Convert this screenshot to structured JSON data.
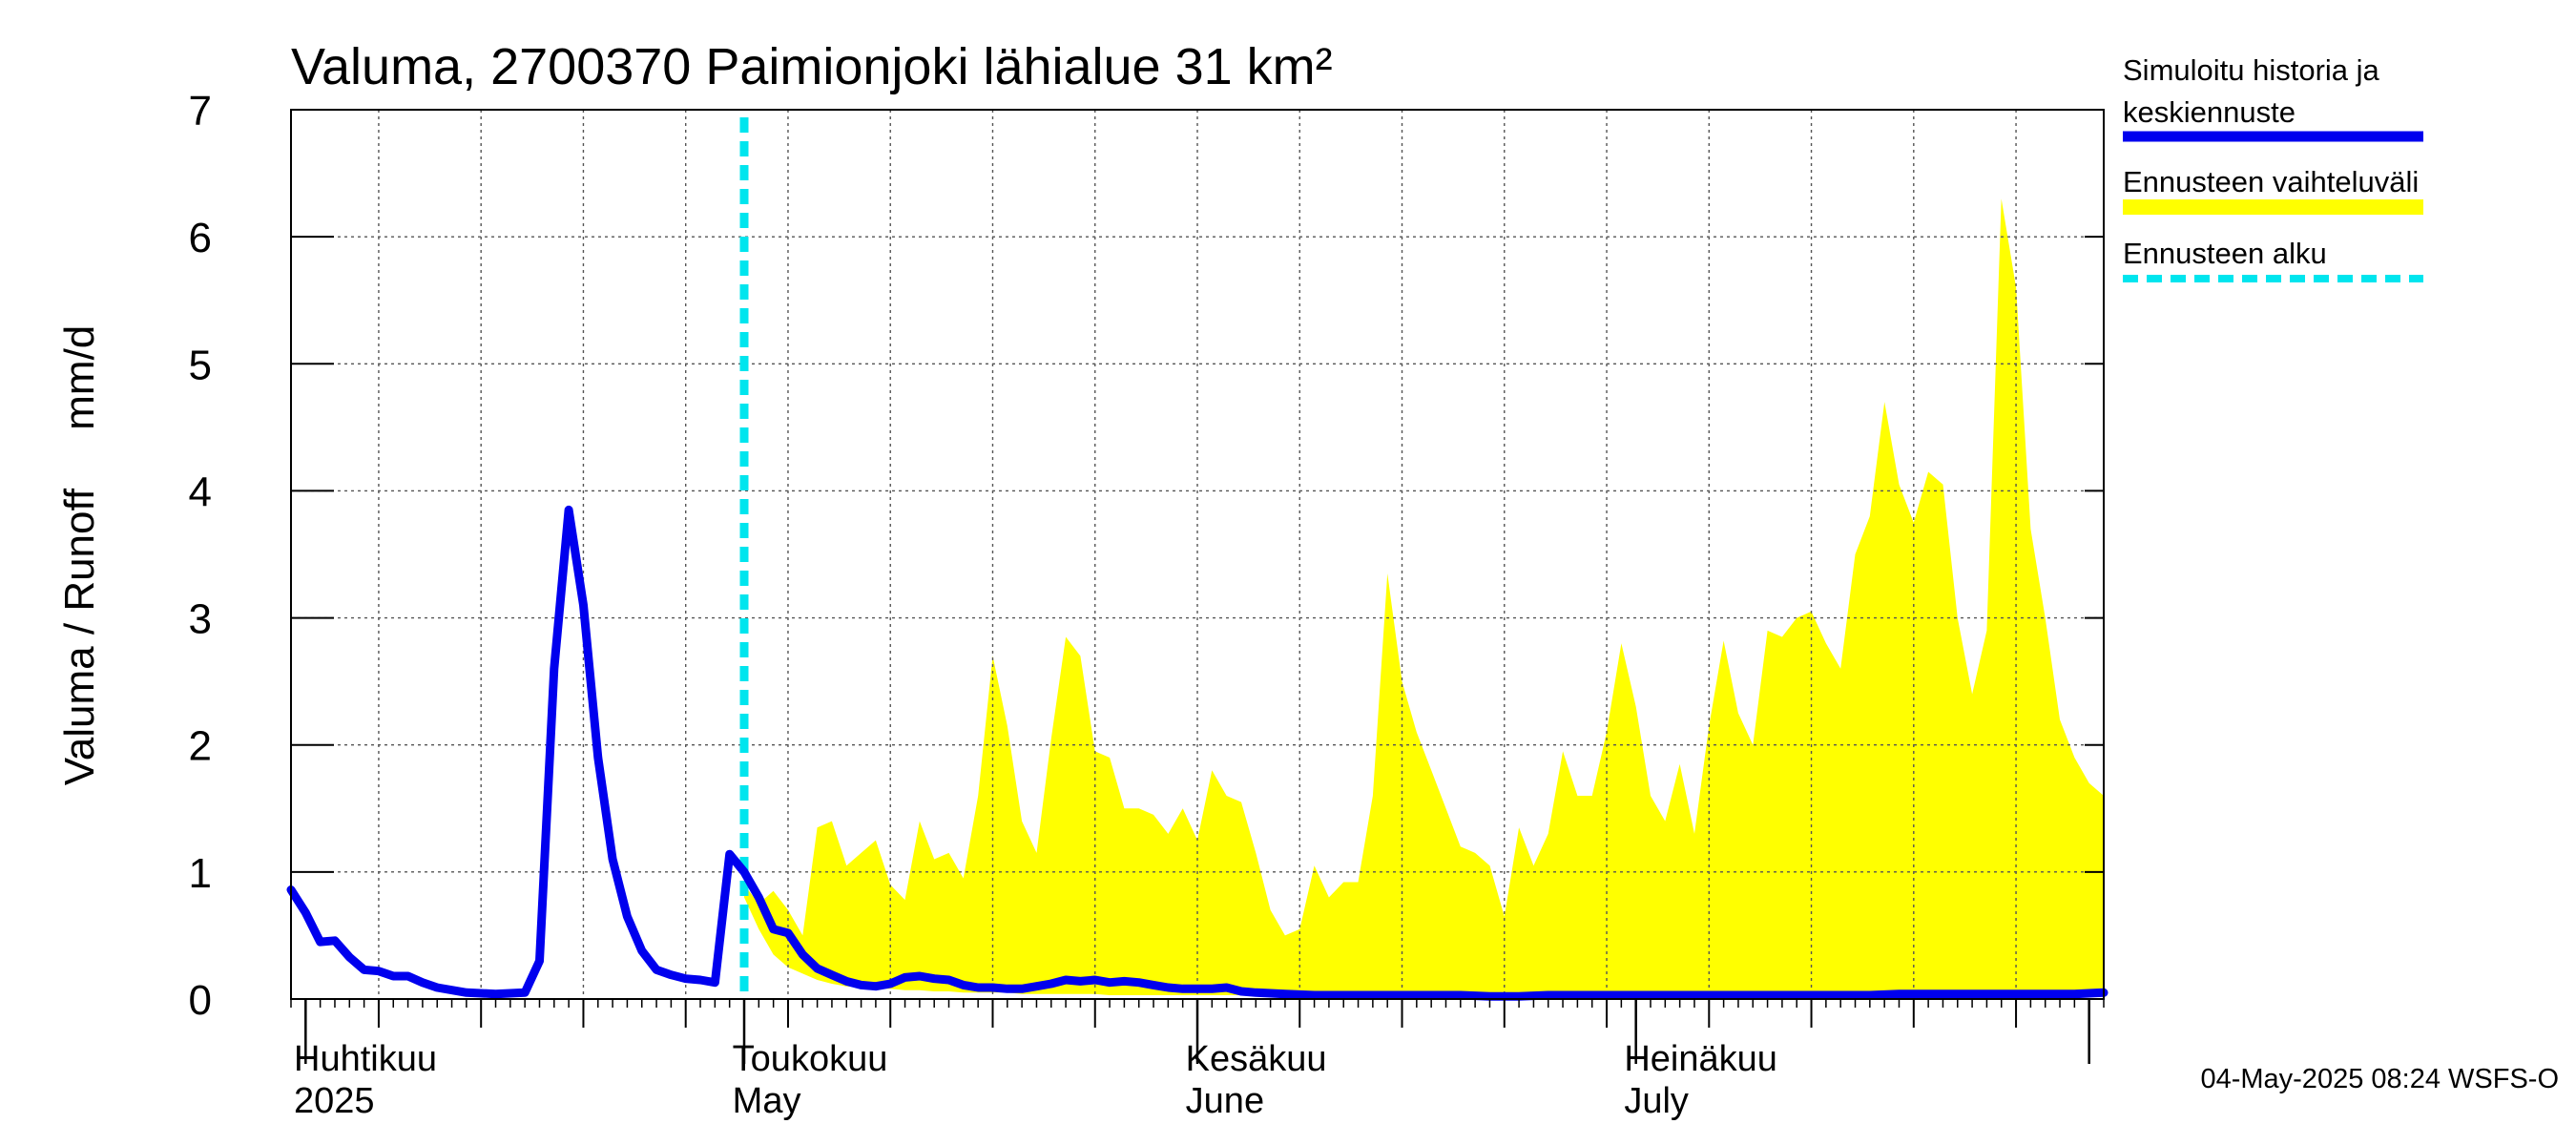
{
  "chart_data": {
    "type": "area",
    "title": "Valuma, 2700370 Paimionjoki lähialue 31 km²",
    "ylabel": "Valuma / Runoff     mm/d",
    "xlabel": "",
    "ylim": [
      0,
      7
    ],
    "yticks": [
      0,
      1,
      2,
      3,
      4,
      5,
      6,
      7
    ],
    "grid": true,
    "x_unit": "day index from 2025-03-31",
    "xlim": [
      0,
      124
    ],
    "month_labels": [
      {
        "day": 0,
        "fi": "Huhtikuu",
        "en": "2025"
      },
      {
        "day": 30,
        "fi": "Toukokuu",
        "en": "May"
      },
      {
        "day": 61,
        "fi": "Kesäkuu",
        "en": "June"
      },
      {
        "day": 91,
        "fi": "Heinäkuu",
        "en": "July"
      }
    ],
    "month_boundaries": [
      1,
      31,
      62,
      92,
      123
    ],
    "forecast_start_day": 31,
    "series": [
      {
        "name": "Simuloitu historia ja keskiennuste",
        "style": "line",
        "color": "#0000ee",
        "x": [
          0,
          1,
          2,
          3,
          4,
          5,
          6,
          7,
          8,
          9,
          10,
          12,
          14,
          16,
          17,
          18,
          19,
          20,
          21,
          22,
          23,
          24,
          25,
          26,
          27,
          28,
          29,
          30,
          31,
          32,
          33,
          34,
          35,
          36,
          37,
          38,
          39,
          40,
          41,
          42,
          43,
          44,
          45,
          46,
          47,
          48,
          49,
          50,
          51,
          52,
          53,
          54,
          55,
          56,
          57,
          58,
          59,
          60,
          61,
          62,
          63,
          64,
          65,
          66,
          68,
          70,
          72,
          74,
          76,
          78,
          80,
          82,
          84,
          86,
          88,
          90,
          92,
          94,
          96,
          98,
          100,
          102,
          104,
          106,
          108,
          110,
          112,
          114,
          116,
          118,
          120,
          122,
          124
        ],
        "values": [
          0.86,
          0.68,
          0.45,
          0.46,
          0.33,
          0.23,
          0.22,
          0.18,
          0.18,
          0.13,
          0.09,
          0.05,
          0.04,
          0.05,
          0.3,
          2.6,
          3.85,
          3.1,
          1.9,
          1.1,
          0.65,
          0.38,
          0.23,
          0.19,
          0.16,
          0.15,
          0.13,
          1.14,
          1.0,
          0.8,
          0.55,
          0.52,
          0.35,
          0.24,
          0.19,
          0.14,
          0.11,
          0.1,
          0.12,
          0.17,
          0.18,
          0.16,
          0.15,
          0.11,
          0.09,
          0.09,
          0.08,
          0.08,
          0.1,
          0.12,
          0.15,
          0.14,
          0.15,
          0.13,
          0.14,
          0.13,
          0.11,
          0.09,
          0.08,
          0.08,
          0.08,
          0.09,
          0.06,
          0.05,
          0.04,
          0.03,
          0.03,
          0.03,
          0.03,
          0.03,
          0.03,
          0.02,
          0.02,
          0.03,
          0.03,
          0.03,
          0.03,
          0.03,
          0.03,
          0.03,
          0.03,
          0.03,
          0.03,
          0.03,
          0.03,
          0.04,
          0.04,
          0.04,
          0.04,
          0.04,
          0.04,
          0.04,
          0.05
        ]
      },
      {
        "name": "Ennusteen vaihteluväli",
        "style": "band",
        "color": "#ffff00",
        "x": [
          31,
          32,
          33,
          34,
          35,
          36,
          37,
          38,
          39,
          40,
          41,
          42,
          43,
          44,
          45,
          46,
          47,
          48,
          49,
          50,
          51,
          52,
          53,
          54,
          55,
          56,
          57,
          58,
          59,
          60,
          61,
          62,
          63,
          64,
          65,
          66,
          67,
          68,
          69,
          70,
          71,
          72,
          73,
          74,
          75,
          76,
          77,
          78,
          79,
          80,
          81,
          82,
          83,
          84,
          85,
          86,
          87,
          88,
          89,
          90,
          91,
          92,
          93,
          94,
          95,
          96,
          97,
          98,
          99,
          100,
          101,
          102,
          103,
          104,
          105,
          106,
          107,
          108,
          109,
          110,
          111,
          112,
          113,
          114,
          115,
          116,
          117,
          118,
          119,
          120,
          121,
          122,
          123,
          124
        ],
        "upper": [
          0.9,
          0.75,
          0.85,
          0.7,
          0.5,
          1.35,
          1.4,
          1.05,
          1.15,
          1.25,
          0.9,
          0.78,
          1.4,
          1.1,
          1.15,
          0.95,
          1.6,
          2.7,
          2.15,
          1.4,
          1.15,
          2.05,
          2.85,
          2.7,
          1.95,
          1.9,
          1.5,
          1.5,
          1.45,
          1.3,
          1.5,
          1.25,
          1.8,
          1.6,
          1.55,
          1.15,
          0.7,
          0.5,
          0.55,
          1.05,
          0.8,
          0.92,
          0.92,
          1.6,
          3.35,
          2.5,
          2.1,
          1.8,
          1.5,
          1.2,
          1.15,
          1.05,
          0.65,
          1.35,
          1.05,
          1.3,
          1.95,
          1.6,
          1.6,
          2.1,
          2.8,
          2.3,
          1.6,
          1.4,
          1.85,
          1.3,
          2.15,
          2.82,
          2.25,
          2.0,
          2.9,
          2.85,
          3.0,
          3.05,
          2.8,
          2.6,
          3.5,
          3.8,
          4.7,
          4.05,
          3.75,
          4.15,
          4.05,
          3.0,
          2.4,
          2.9,
          6.3,
          5.6,
          3.7,
          3.0,
          2.2,
          1.9,
          1.7,
          1.6
        ],
        "lower": [
          0.8,
          0.55,
          0.35,
          0.25,
          0.2,
          0.15,
          0.12,
          0.1,
          0.09,
          0.08,
          0.08,
          0.07,
          0.07,
          0.06,
          0.06,
          0.05,
          0.05,
          0.05,
          0.05,
          0.04,
          0.04,
          0.04,
          0.04,
          0.04,
          0.04,
          0.03,
          0.03,
          0.03,
          0.03,
          0.03,
          0.03,
          0.03,
          0.03,
          0.03,
          0.03,
          0.02,
          0.02,
          0.02,
          0.02,
          0.02,
          0.02,
          0.02,
          0.02,
          0.02,
          0.02,
          0.02,
          0.02,
          0.02,
          0.02,
          0.02,
          0.02,
          0.02,
          0.02,
          0.02,
          0.02,
          0.02,
          0.02,
          0.02,
          0.02,
          0.02,
          0.02,
          0.02,
          0.02,
          0.02,
          0.02,
          0.02,
          0.02,
          0.02,
          0.02,
          0.02,
          0.02,
          0.02,
          0.02,
          0.02,
          0.02,
          0.02,
          0.02,
          0.02,
          0.02,
          0.02,
          0.02,
          0.02,
          0.02,
          0.02,
          0.02,
          0.02,
          0.02,
          0.02,
          0.02,
          0.02,
          0.02,
          0.02,
          0.02,
          0.02
        ]
      }
    ],
    "legend": [
      {
        "label": "Simuloitu historia ja",
        "label2": "keskiennuste",
        "color": "#0000ee",
        "style": "line"
      },
      {
        "label": "Ennusteen vaihteluväli",
        "color": "#ffff00",
        "style": "band"
      },
      {
        "label": "Ennusteen alku",
        "color": "#00e5ee",
        "style": "dashed"
      }
    ],
    "legend_position": "right",
    "footer": "04-May-2025 08:24 WSFS-O"
  }
}
